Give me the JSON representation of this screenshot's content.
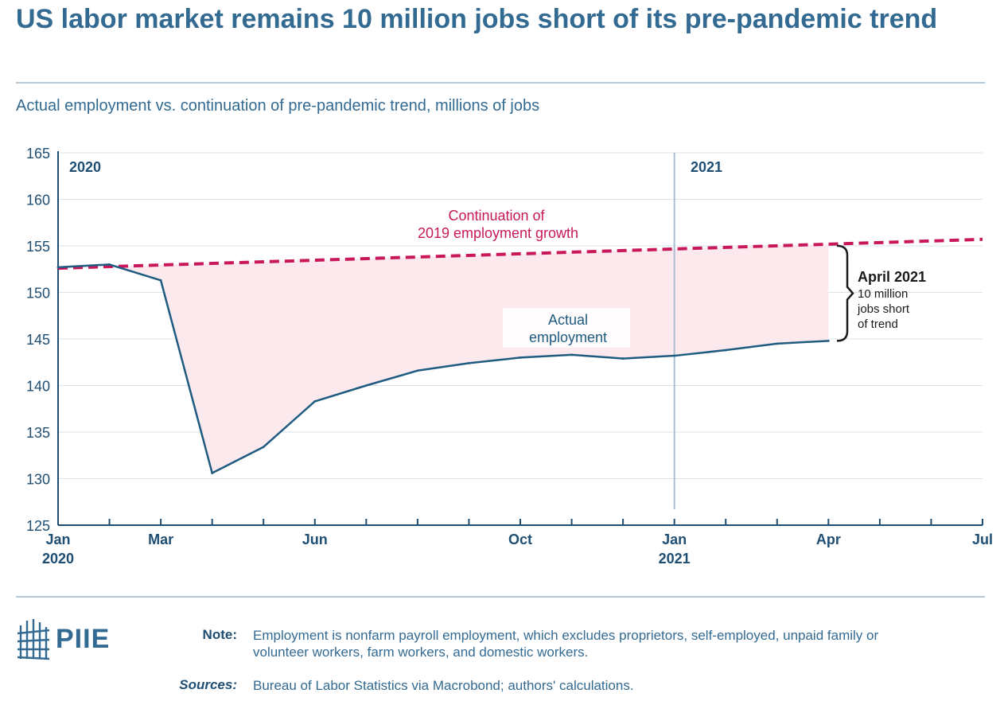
{
  "header": {
    "title": "US labor market remains 10 million jobs short of its pre-pandemic trend",
    "subtitle": "Actual employment vs. continuation of pre-pandemic trend, millions of jobs"
  },
  "chart_data": {
    "type": "line",
    "title": "US labor market remains 10 million jobs short of its pre-pandemic trend",
    "ylabel": "Actual employment vs. continuation of pre-pandemic trend, millions of jobs",
    "ylim": [
      125,
      165
    ],
    "yticks": [
      125,
      130,
      135,
      140,
      145,
      150,
      155,
      160,
      165
    ],
    "xlim": [
      "2020-01",
      "2021-07"
    ],
    "x_tick_labels": [
      {
        "date": "2020-01",
        "line1": "Jan",
        "line2": "2020"
      },
      {
        "date": "2020-03",
        "line1": "Mar",
        "line2": ""
      },
      {
        "date": "2020-06",
        "line1": "Jun",
        "line2": ""
      },
      {
        "date": "2020-10",
        "line1": "Oct",
        "line2": ""
      },
      {
        "date": "2021-01",
        "line1": "Jan",
        "line2": "2021"
      },
      {
        "date": "2021-04",
        "line1": "Apr",
        "line2": ""
      },
      {
        "date": "2021-07",
        "line1": "Jul",
        "line2": ""
      }
    ],
    "grid": true,
    "series": [
      {
        "name": "Actual employment",
        "label_lines": [
          "Actual",
          "employment"
        ],
        "color": "#1f5b80",
        "style": "solid",
        "x": [
          "2020-01",
          "2020-02",
          "2020-03",
          "2020-04",
          "2020-05",
          "2020-06",
          "2020-07",
          "2020-08",
          "2020-09",
          "2020-10",
          "2020-11",
          "2020-12",
          "2021-01",
          "2021-02",
          "2021-03",
          "2021-04"
        ],
        "values": [
          152.7,
          153.0,
          151.3,
          130.6,
          133.4,
          138.3,
          140.0,
          141.6,
          142.4,
          143.0,
          143.3,
          142.9,
          143.2,
          143.8,
          144.5,
          144.8
        ]
      },
      {
        "name": "Continuation of 2019 employment growth",
        "label_lines": [
          "Continuation of",
          "2019 employment growth"
        ],
        "color": "#c8185a",
        "style": "dashed",
        "x": [
          "2020-01",
          "2021-07"
        ],
        "values": [
          152.6,
          155.7
        ]
      }
    ],
    "annotations": {
      "period_2020": "2020",
      "period_2021": "2021",
      "gap_title": "April 2021",
      "gap_lines": [
        "10 million",
        "jobs short",
        "of trend"
      ]
    },
    "colors": {
      "axis": "#1f4e73",
      "grid": "#d9e3ec",
      "gap_fill": "#fbe9ee",
      "divider": "#a9bfd2"
    }
  },
  "footer": {
    "logo_text": "PIIE",
    "note_label": "Note:",
    "note_text": "Employment is nonfarm payroll employment, which excludes proprietors, self-employed, unpaid family or volunteer workers, farm workers, and domestic workers.",
    "sources_label": "Sources:",
    "sources_text": "Bureau of Labor Statistics via Macrobond; authors' calculations."
  }
}
